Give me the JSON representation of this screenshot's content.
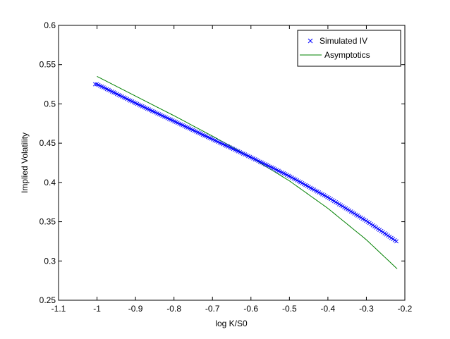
{
  "chart_data": {
    "type": "line",
    "xlabel": "log K/S0",
    "ylabel": "Implied Volatility",
    "xlim": [
      -1.1,
      -0.2
    ],
    "ylim": [
      0.25,
      0.6
    ],
    "xticks": [
      -1.1,
      -1,
      -0.9,
      -0.8,
      -0.7,
      -0.6,
      -0.5,
      -0.4,
      -0.3,
      -0.2
    ],
    "xtick_labels": [
      "-1.1",
      "-1",
      "-0.9",
      "-0.8",
      "-0.7",
      "-0.6",
      "-0.5",
      "-0.4",
      "-0.3",
      "-0.2"
    ],
    "yticks": [
      0.25,
      0.3,
      0.35,
      0.4,
      0.45,
      0.5,
      0.55,
      0.6
    ],
    "ytick_labels": [
      "0.25",
      "0.3",
      "0.35",
      "0.4",
      "0.45",
      "0.5",
      "0.55",
      "0.6"
    ],
    "grid": false,
    "legend_position": "top-right",
    "series": [
      {
        "name": "Simulated IV",
        "marker": "x",
        "color": "#0000ff",
        "x_range": [
          -1.005,
          -0.222
        ],
        "points": 180,
        "x": [
          -1.0,
          -0.9,
          -0.8,
          -0.7,
          -0.6,
          -0.5,
          -0.4,
          -0.3,
          -0.222
        ],
        "y": [
          0.525,
          0.501,
          0.478,
          0.455,
          0.432,
          0.408,
          0.381,
          0.351,
          0.325
        ]
      },
      {
        "name": "Asymptotics",
        "marker": "none",
        "color": "#008000",
        "x": [
          -1.0,
          -0.9,
          -0.8,
          -0.7,
          -0.6,
          -0.5,
          -0.4,
          -0.3,
          -0.22
        ],
        "y": [
          0.535,
          0.51,
          0.485,
          0.459,
          0.432,
          0.402,
          0.367,
          0.327,
          0.29
        ]
      }
    ]
  }
}
